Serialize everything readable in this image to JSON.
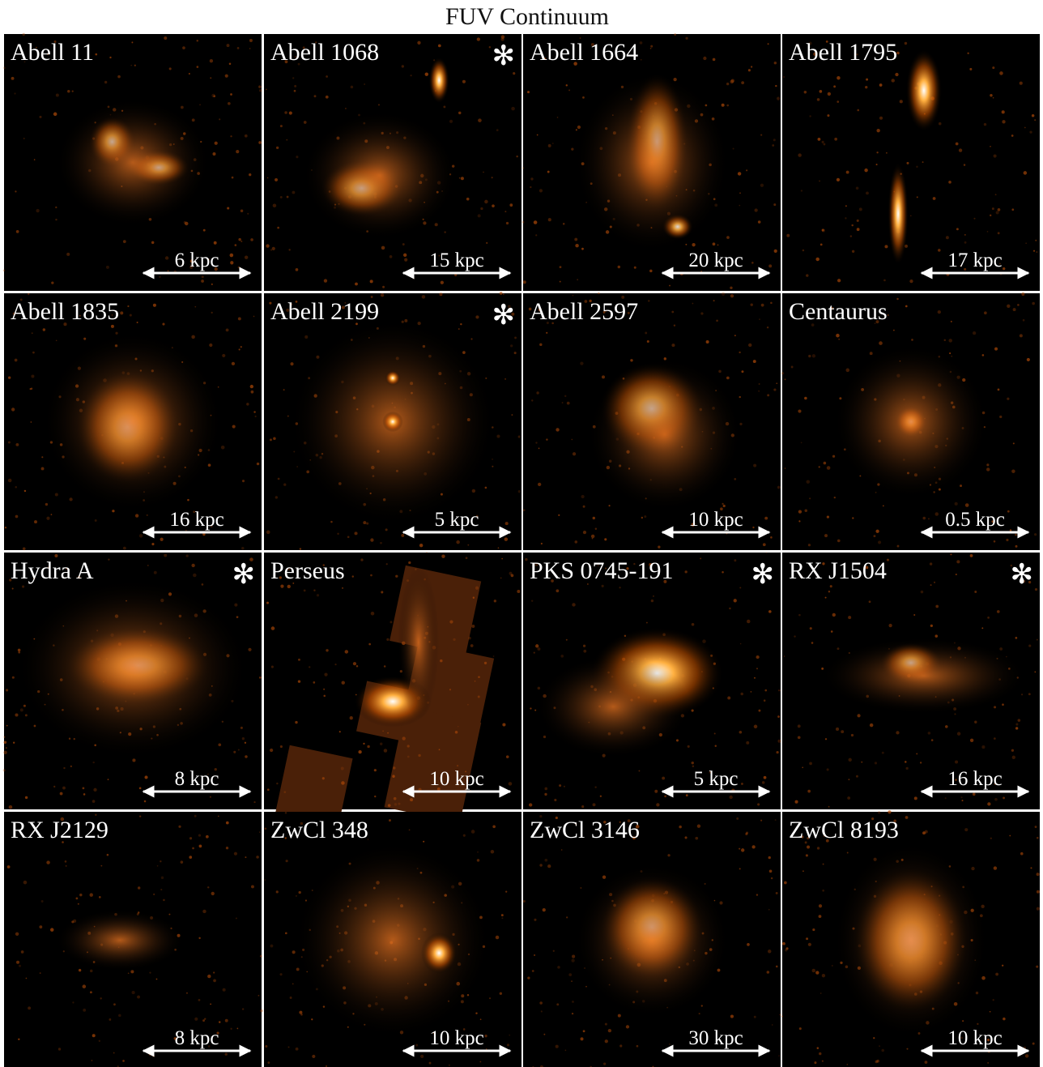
{
  "title": "FUV Continuum",
  "panels": [
    {
      "name": "Abell 11",
      "scale": "6 kpc"
    },
    {
      "name": "Abell 1068",
      "scale": "15 kpc",
      "marker": "✻"
    },
    {
      "name": "Abell 1664",
      "scale": "20 kpc"
    },
    {
      "name": "Abell 1795",
      "scale": "17 kpc"
    },
    {
      "name": "Abell 1835",
      "scale": "16 kpc"
    },
    {
      "name": "Abell 2199",
      "scale": "5 kpc",
      "marker": "✻"
    },
    {
      "name": "Abell 2597",
      "scale": "10 kpc"
    },
    {
      "name": "Centaurus",
      "scale": "0.5 kpc"
    },
    {
      "name": "Hydra A",
      "scale": "8 kpc",
      "marker": "✻"
    },
    {
      "name": "Perseus",
      "scale": "10 kpc"
    },
    {
      "name": "PKS 0745-191",
      "scale": "5 kpc",
      "marker": "✻"
    },
    {
      "name": "RX J1504",
      "scale": "16 kpc",
      "marker": "✻"
    },
    {
      "name": "RX J2129",
      "scale": "8 kpc"
    },
    {
      "name": "ZwCl 348",
      "scale": "10 kpc"
    },
    {
      "name": "ZwCl 3146",
      "scale": "30 kpc"
    },
    {
      "name": "ZwCl 8193",
      "scale": "10 kpc"
    }
  ]
}
